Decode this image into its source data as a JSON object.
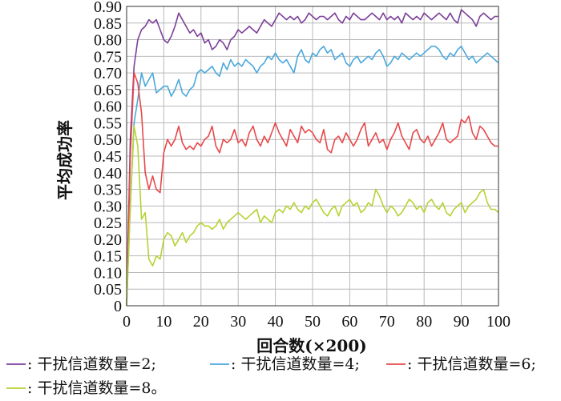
{
  "chart_data": {
    "type": "line",
    "xlabel": "回合数(×200)",
    "ylabel": "平均成功率",
    "xlim": [
      0,
      100
    ],
    "ylim": [
      0,
      0.9
    ],
    "xticks": [
      "0",
      "10",
      "20",
      "30",
      "40",
      "50",
      "60",
      "70",
      "80",
      "90",
      "100"
    ],
    "yticks": [
      "0",
      "0.05",
      "0.10",
      "0.15",
      "0.20",
      "0.25",
      "0.30",
      "0.35",
      "0.40",
      "0.45",
      "0.50",
      "0.55",
      "0.60",
      "0.65",
      "0.70",
      "0.75",
      "0.80",
      "0.85",
      "0.90"
    ],
    "grid": true,
    "legend_position": "bottom",
    "legend_suffixes": [
      ";",
      ";",
      ";",
      "。"
    ],
    "series": [
      {
        "name": ": 干扰信道数量=2",
        "color": "#7b3f98",
        "x": [
          0,
          1,
          2,
          3,
          4,
          5,
          6,
          7,
          8,
          9,
          10,
          11,
          12,
          13,
          14,
          15,
          16,
          17,
          18,
          19,
          20,
          21,
          22,
          23,
          24,
          25,
          26,
          27,
          28,
          29,
          30,
          31,
          32,
          33,
          34,
          35,
          36,
          37,
          38,
          39,
          40,
          41,
          42,
          43,
          44,
          45,
          46,
          47,
          48,
          49,
          50,
          51,
          52,
          53,
          54,
          55,
          56,
          57,
          58,
          59,
          60,
          61,
          62,
          63,
          64,
          65,
          66,
          67,
          68,
          69,
          70,
          71,
          72,
          73,
          74,
          75,
          76,
          77,
          78,
          79,
          80,
          81,
          82,
          83,
          84,
          85,
          86,
          87,
          88,
          89,
          90,
          91,
          92,
          93,
          94,
          95,
          96,
          97,
          98,
          99,
          100
        ],
        "y": [
          0.0,
          0.5,
          0.72,
          0.8,
          0.83,
          0.84,
          0.86,
          0.85,
          0.86,
          0.83,
          0.8,
          0.79,
          0.81,
          0.84,
          0.88,
          0.86,
          0.84,
          0.82,
          0.83,
          0.81,
          0.82,
          0.79,
          0.8,
          0.77,
          0.78,
          0.8,
          0.79,
          0.77,
          0.8,
          0.81,
          0.83,
          0.82,
          0.83,
          0.84,
          0.83,
          0.82,
          0.84,
          0.86,
          0.85,
          0.84,
          0.86,
          0.88,
          0.87,
          0.86,
          0.87,
          0.86,
          0.87,
          0.85,
          0.86,
          0.88,
          0.87,
          0.86,
          0.87,
          0.87,
          0.86,
          0.87,
          0.88,
          0.86,
          0.85,
          0.87,
          0.86,
          0.88,
          0.87,
          0.86,
          0.86,
          0.87,
          0.88,
          0.87,
          0.86,
          0.88,
          0.86,
          0.87,
          0.86,
          0.87,
          0.85,
          0.88,
          0.87,
          0.86,
          0.87,
          0.86,
          0.88,
          0.87,
          0.86,
          0.87,
          0.88,
          0.87,
          0.86,
          0.88,
          0.86,
          0.85,
          0.89,
          0.88,
          0.87,
          0.86,
          0.84,
          0.87,
          0.88,
          0.87,
          0.86,
          0.87,
          0.87
        ]
      },
      {
        "name": ": 干扰信道数量=4",
        "color": "#4aa8dc",
        "x": [
          0,
          1,
          2,
          3,
          4,
          5,
          6,
          7,
          8,
          9,
          10,
          11,
          12,
          13,
          14,
          15,
          16,
          17,
          18,
          19,
          20,
          21,
          22,
          23,
          24,
          25,
          26,
          27,
          28,
          29,
          30,
          31,
          32,
          33,
          34,
          35,
          36,
          37,
          38,
          39,
          40,
          41,
          42,
          43,
          44,
          45,
          46,
          47,
          48,
          49,
          50,
          51,
          52,
          53,
          54,
          55,
          56,
          57,
          58,
          59,
          60,
          61,
          62,
          63,
          64,
          65,
          66,
          67,
          68,
          69,
          70,
          71,
          72,
          73,
          74,
          75,
          76,
          77,
          78,
          79,
          80,
          81,
          82,
          83,
          84,
          85,
          86,
          87,
          88,
          89,
          90,
          91,
          92,
          93,
          94,
          95,
          96,
          97,
          98,
          99,
          100
        ],
        "y": [
          0.0,
          0.3,
          0.55,
          0.62,
          0.7,
          0.66,
          0.68,
          0.7,
          0.64,
          0.65,
          0.66,
          0.66,
          0.63,
          0.65,
          0.68,
          0.64,
          0.63,
          0.65,
          0.66,
          0.7,
          0.71,
          0.7,
          0.71,
          0.72,
          0.7,
          0.69,
          0.73,
          0.71,
          0.74,
          0.72,
          0.73,
          0.72,
          0.74,
          0.73,
          0.72,
          0.7,
          0.72,
          0.73,
          0.75,
          0.74,
          0.76,
          0.74,
          0.73,
          0.74,
          0.72,
          0.7,
          0.75,
          0.77,
          0.74,
          0.73,
          0.76,
          0.75,
          0.77,
          0.78,
          0.76,
          0.77,
          0.74,
          0.75,
          0.76,
          0.73,
          0.72,
          0.74,
          0.75,
          0.73,
          0.74,
          0.75,
          0.74,
          0.76,
          0.77,
          0.75,
          0.72,
          0.73,
          0.75,
          0.74,
          0.76,
          0.75,
          0.74,
          0.75,
          0.76,
          0.75,
          0.76,
          0.77,
          0.78,
          0.78,
          0.77,
          0.75,
          0.74,
          0.76,
          0.75,
          0.77,
          0.78,
          0.76,
          0.74,
          0.75,
          0.73,
          0.74,
          0.75,
          0.76,
          0.75,
          0.74,
          0.73
        ]
      },
      {
        "name": ": 干扰信道数量=6",
        "color": "#e8484a",
        "x": [
          0,
          1,
          2,
          3,
          4,
          5,
          6,
          7,
          8,
          9,
          10,
          11,
          12,
          13,
          14,
          15,
          16,
          17,
          18,
          19,
          20,
          21,
          22,
          23,
          24,
          25,
          26,
          27,
          28,
          29,
          30,
          31,
          32,
          33,
          34,
          35,
          36,
          37,
          38,
          39,
          40,
          41,
          42,
          43,
          44,
          45,
          46,
          47,
          48,
          49,
          50,
          51,
          52,
          53,
          54,
          55,
          56,
          57,
          58,
          59,
          60,
          61,
          62,
          63,
          64,
          65,
          66,
          67,
          68,
          69,
          70,
          71,
          72,
          73,
          74,
          75,
          76,
          77,
          78,
          79,
          80,
          81,
          82,
          83,
          84,
          85,
          86,
          87,
          88,
          89,
          90,
          91,
          92,
          93,
          94,
          95,
          96,
          97,
          98,
          99,
          100
        ],
        "y": [
          0.0,
          0.45,
          0.7,
          0.67,
          0.58,
          0.4,
          0.35,
          0.39,
          0.35,
          0.34,
          0.46,
          0.5,
          0.48,
          0.5,
          0.54,
          0.49,
          0.47,
          0.48,
          0.47,
          0.49,
          0.48,
          0.5,
          0.51,
          0.54,
          0.48,
          0.46,
          0.5,
          0.49,
          0.5,
          0.53,
          0.49,
          0.5,
          0.48,
          0.52,
          0.54,
          0.5,
          0.48,
          0.51,
          0.49,
          0.52,
          0.55,
          0.52,
          0.5,
          0.48,
          0.53,
          0.51,
          0.49,
          0.54,
          0.52,
          0.53,
          0.52,
          0.5,
          0.49,
          0.53,
          0.47,
          0.46,
          0.5,
          0.51,
          0.49,
          0.52,
          0.5,
          0.48,
          0.5,
          0.53,
          0.55,
          0.48,
          0.5,
          0.52,
          0.49,
          0.5,
          0.47,
          0.5,
          0.52,
          0.55,
          0.51,
          0.49,
          0.47,
          0.52,
          0.53,
          0.5,
          0.49,
          0.51,
          0.48,
          0.5,
          0.52,
          0.55,
          0.5,
          0.49,
          0.5,
          0.51,
          0.56,
          0.55,
          0.57,
          0.52,
          0.5,
          0.54,
          0.53,
          0.51,
          0.49,
          0.48,
          0.48
        ]
      },
      {
        "name": ": 干扰信道数量=8",
        "color": "#b5d334",
        "x": [
          0,
          1,
          2,
          3,
          4,
          5,
          6,
          7,
          8,
          9,
          10,
          11,
          12,
          13,
          14,
          15,
          16,
          17,
          18,
          19,
          20,
          21,
          22,
          23,
          24,
          25,
          26,
          27,
          28,
          29,
          30,
          31,
          32,
          33,
          34,
          35,
          36,
          37,
          38,
          39,
          40,
          41,
          42,
          43,
          44,
          45,
          46,
          47,
          48,
          49,
          50,
          51,
          52,
          53,
          54,
          55,
          56,
          57,
          58,
          59,
          60,
          61,
          62,
          63,
          64,
          65,
          66,
          67,
          68,
          69,
          70,
          71,
          72,
          73,
          74,
          75,
          76,
          77,
          78,
          79,
          80,
          81,
          82,
          83,
          84,
          85,
          86,
          87,
          88,
          89,
          90,
          91,
          92,
          93,
          94,
          95,
          96,
          97,
          98,
          99,
          100
        ],
        "y": [
          0.0,
          0.3,
          0.54,
          0.48,
          0.26,
          0.28,
          0.14,
          0.12,
          0.15,
          0.14,
          0.2,
          0.22,
          0.21,
          0.18,
          0.2,
          0.22,
          0.19,
          0.21,
          0.22,
          0.24,
          0.25,
          0.24,
          0.24,
          0.23,
          0.24,
          0.26,
          0.23,
          0.25,
          0.26,
          0.27,
          0.28,
          0.27,
          0.26,
          0.27,
          0.28,
          0.29,
          0.25,
          0.27,
          0.26,
          0.25,
          0.28,
          0.29,
          0.28,
          0.3,
          0.29,
          0.31,
          0.29,
          0.28,
          0.3,
          0.29,
          0.31,
          0.32,
          0.3,
          0.28,
          0.27,
          0.29,
          0.3,
          0.27,
          0.3,
          0.31,
          0.32,
          0.3,
          0.31,
          0.28,
          0.29,
          0.31,
          0.3,
          0.35,
          0.33,
          0.3,
          0.28,
          0.3,
          0.29,
          0.27,
          0.28,
          0.3,
          0.32,
          0.31,
          0.29,
          0.3,
          0.28,
          0.31,
          0.32,
          0.3,
          0.29,
          0.31,
          0.28,
          0.27,
          0.29,
          0.3,
          0.31,
          0.28,
          0.3,
          0.31,
          0.32,
          0.34,
          0.35,
          0.31,
          0.29,
          0.29,
          0.28
        ]
      }
    ]
  }
}
